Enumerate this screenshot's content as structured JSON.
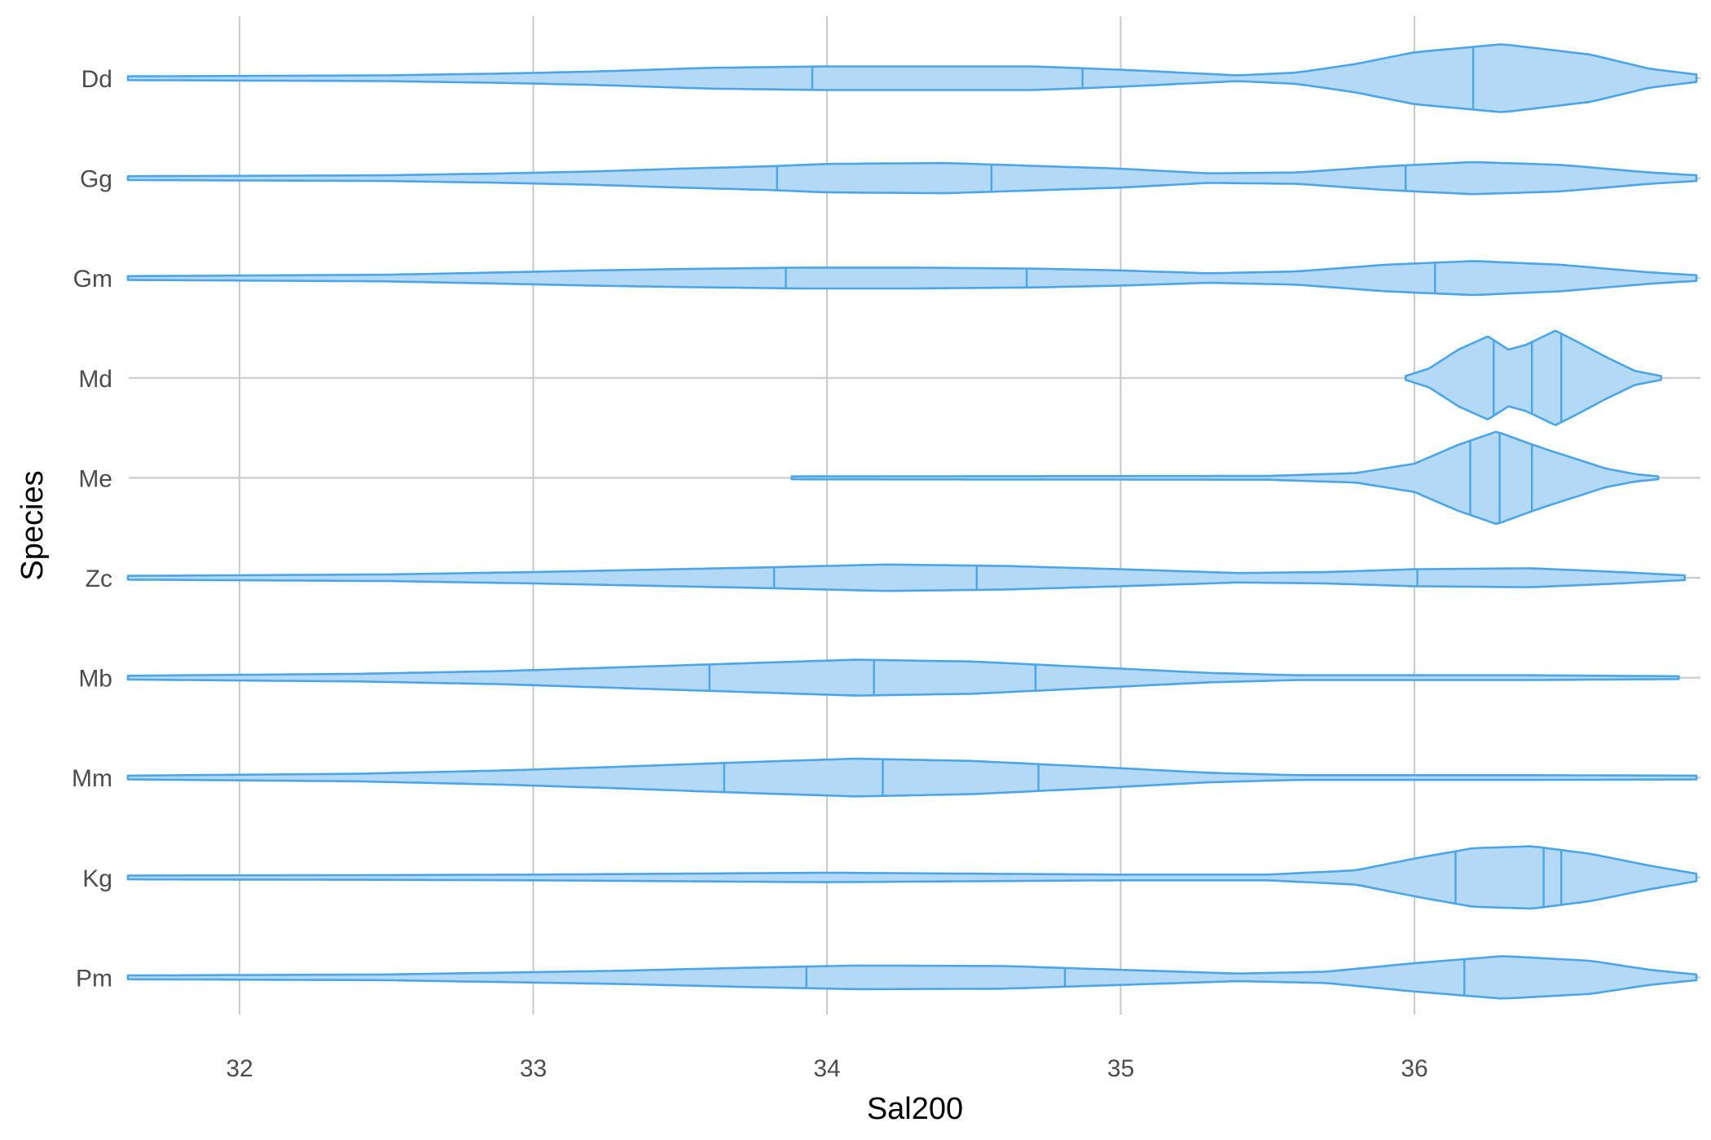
{
  "chart_data": {
    "type": "violin",
    "orientation": "horizontal",
    "xlabel": "Sal200",
    "ylabel": "Species",
    "xlim": [
      31.62,
      36.96
    ],
    "xticks": [
      32,
      33,
      34,
      35,
      36
    ],
    "xtick_labels": [
      "32",
      "33",
      "34",
      "35",
      "36"
    ],
    "grid": true,
    "fill_color": "#b3d9f7",
    "line_color": "#4ca5e6",
    "categories": [
      "Dd",
      "Gg",
      "Gm",
      "Md",
      "Me",
      "Zc",
      "Mb",
      "Mm",
      "Kg",
      "Pm"
    ],
    "series": [
      {
        "category": "Dd",
        "min": 31.62,
        "max": 36.96,
        "quantiles": [
          33.95,
          34.87,
          36.2
        ],
        "density": [
          [
            31.62,
            0.04
          ],
          [
            32.5,
            0.06
          ],
          [
            32.9,
            0.1
          ],
          [
            33.2,
            0.14
          ],
          [
            33.4,
            0.18
          ],
          [
            33.6,
            0.22
          ],
          [
            34.0,
            0.25
          ],
          [
            34.7,
            0.25
          ],
          [
            35.0,
            0.18
          ],
          [
            35.2,
            0.12
          ],
          [
            35.4,
            0.06
          ],
          [
            35.6,
            0.12
          ],
          [
            35.8,
            0.3
          ],
          [
            36.0,
            0.55
          ],
          [
            36.3,
            0.72
          ],
          [
            36.6,
            0.5
          ],
          [
            36.8,
            0.2
          ],
          [
            36.96,
            0.08
          ]
        ]
      },
      {
        "category": "Gg",
        "min": 31.62,
        "max": 36.96,
        "quantiles": [
          33.83,
          34.56,
          35.97
        ],
        "density": [
          [
            31.62,
            0.04
          ],
          [
            32.5,
            0.06
          ],
          [
            32.9,
            0.1
          ],
          [
            33.2,
            0.14
          ],
          [
            33.5,
            0.2
          ],
          [
            33.8,
            0.25
          ],
          [
            34.0,
            0.3
          ],
          [
            34.4,
            0.32
          ],
          [
            34.7,
            0.26
          ],
          [
            35.0,
            0.2
          ],
          [
            35.3,
            0.1
          ],
          [
            35.6,
            0.12
          ],
          [
            35.9,
            0.25
          ],
          [
            36.2,
            0.34
          ],
          [
            36.5,
            0.28
          ],
          [
            36.8,
            0.12
          ],
          [
            36.96,
            0.06
          ]
        ]
      },
      {
        "category": "Gm",
        "min": 31.62,
        "max": 36.96,
        "quantiles": [
          33.86,
          34.68,
          36.07
        ],
        "density": [
          [
            31.62,
            0.04
          ],
          [
            32.5,
            0.07
          ],
          [
            32.9,
            0.12
          ],
          [
            33.2,
            0.16
          ],
          [
            33.5,
            0.19
          ],
          [
            33.9,
            0.22
          ],
          [
            34.3,
            0.22
          ],
          [
            34.7,
            0.2
          ],
          [
            35.0,
            0.16
          ],
          [
            35.3,
            0.1
          ],
          [
            35.6,
            0.14
          ],
          [
            35.9,
            0.28
          ],
          [
            36.2,
            0.36
          ],
          [
            36.5,
            0.28
          ],
          [
            36.8,
            0.12
          ],
          [
            36.96,
            0.06
          ]
        ]
      },
      {
        "category": "Md",
        "min": 35.97,
        "max": 36.84,
        "quantiles": [
          36.27,
          36.4,
          36.5
        ],
        "density": [
          [
            35.97,
            0.04
          ],
          [
            36.05,
            0.2
          ],
          [
            36.15,
            0.6
          ],
          [
            36.25,
            0.88
          ],
          [
            36.32,
            0.6
          ],
          [
            36.38,
            0.7
          ],
          [
            36.48,
            1.0
          ],
          [
            36.55,
            0.78
          ],
          [
            36.65,
            0.45
          ],
          [
            36.75,
            0.15
          ],
          [
            36.84,
            0.04
          ]
        ]
      },
      {
        "category": "Me",
        "min": 33.88,
        "max": 36.83,
        "quantiles": [
          36.19,
          36.29,
          36.4
        ],
        "density": [
          [
            33.88,
            0.03
          ],
          [
            35.5,
            0.04
          ],
          [
            35.8,
            0.1
          ],
          [
            36.0,
            0.3
          ],
          [
            36.15,
            0.7
          ],
          [
            36.28,
            0.98
          ],
          [
            36.38,
            0.75
          ],
          [
            36.45,
            0.6
          ],
          [
            36.55,
            0.4
          ],
          [
            36.65,
            0.2
          ],
          [
            36.75,
            0.08
          ],
          [
            36.83,
            0.03
          ]
        ]
      },
      {
        "category": "Zc",
        "min": 31.62,
        "max": 36.92,
        "quantiles": [
          33.82,
          34.51,
          36.01
        ],
        "density": [
          [
            31.62,
            0.04
          ],
          [
            32.5,
            0.07
          ],
          [
            33.0,
            0.12
          ],
          [
            33.4,
            0.17
          ],
          [
            33.8,
            0.22
          ],
          [
            34.2,
            0.28
          ],
          [
            34.6,
            0.25
          ],
          [
            35.0,
            0.18
          ],
          [
            35.4,
            0.1
          ],
          [
            35.7,
            0.12
          ],
          [
            36.0,
            0.18
          ],
          [
            36.4,
            0.2
          ],
          [
            36.7,
            0.12
          ],
          [
            36.92,
            0.05
          ]
        ]
      },
      {
        "category": "Mb",
        "min": 31.62,
        "max": 36.9,
        "quantiles": [
          33.6,
          34.16,
          34.71
        ],
        "density": [
          [
            31.62,
            0.04
          ],
          [
            32.4,
            0.08
          ],
          [
            32.9,
            0.14
          ],
          [
            33.3,
            0.22
          ],
          [
            33.7,
            0.3
          ],
          [
            34.1,
            0.38
          ],
          [
            34.5,
            0.34
          ],
          [
            34.9,
            0.22
          ],
          [
            35.3,
            0.1
          ],
          [
            35.6,
            0.05
          ],
          [
            36.0,
            0.05
          ],
          [
            36.4,
            0.05
          ],
          [
            36.9,
            0.03
          ]
        ]
      },
      {
        "category": "Mm",
        "min": 31.62,
        "max": 36.96,
        "quantiles": [
          33.65,
          34.19,
          34.72
        ],
        "density": [
          [
            31.62,
            0.04
          ],
          [
            32.4,
            0.08
          ],
          [
            32.9,
            0.15
          ],
          [
            33.3,
            0.23
          ],
          [
            33.7,
            0.32
          ],
          [
            34.1,
            0.4
          ],
          [
            34.5,
            0.35
          ],
          [
            34.9,
            0.23
          ],
          [
            35.3,
            0.1
          ],
          [
            35.6,
            0.05
          ],
          [
            36.0,
            0.05
          ],
          [
            36.4,
            0.05
          ],
          [
            36.96,
            0.04
          ]
        ]
      },
      {
        "category": "Kg",
        "min": 31.62,
        "max": 36.96,
        "quantiles": [
          36.14,
          36.44,
          36.5
        ],
        "density": [
          [
            31.62,
            0.04
          ],
          [
            32.5,
            0.05
          ],
          [
            33.0,
            0.06
          ],
          [
            33.5,
            0.08
          ],
          [
            34.0,
            0.1
          ],
          [
            34.5,
            0.08
          ],
          [
            35.0,
            0.06
          ],
          [
            35.5,
            0.06
          ],
          [
            35.8,
            0.15
          ],
          [
            36.0,
            0.4
          ],
          [
            36.2,
            0.62
          ],
          [
            36.4,
            0.66
          ],
          [
            36.6,
            0.5
          ],
          [
            36.8,
            0.25
          ],
          [
            36.96,
            0.08
          ]
        ]
      },
      {
        "category": "Pm",
        "min": 31.62,
        "max": 36.96,
        "quantiles": [
          33.93,
          34.81,
          36.17
        ],
        "density": [
          [
            31.62,
            0.04
          ],
          [
            32.5,
            0.06
          ],
          [
            32.9,
            0.1
          ],
          [
            33.3,
            0.14
          ],
          [
            33.7,
            0.2
          ],
          [
            34.1,
            0.25
          ],
          [
            34.6,
            0.24
          ],
          [
            35.0,
            0.16
          ],
          [
            35.4,
            0.08
          ],
          [
            35.7,
            0.12
          ],
          [
            36.0,
            0.3
          ],
          [
            36.3,
            0.45
          ],
          [
            36.6,
            0.35
          ],
          [
            36.8,
            0.16
          ],
          [
            36.96,
            0.06
          ]
        ]
      }
    ]
  }
}
